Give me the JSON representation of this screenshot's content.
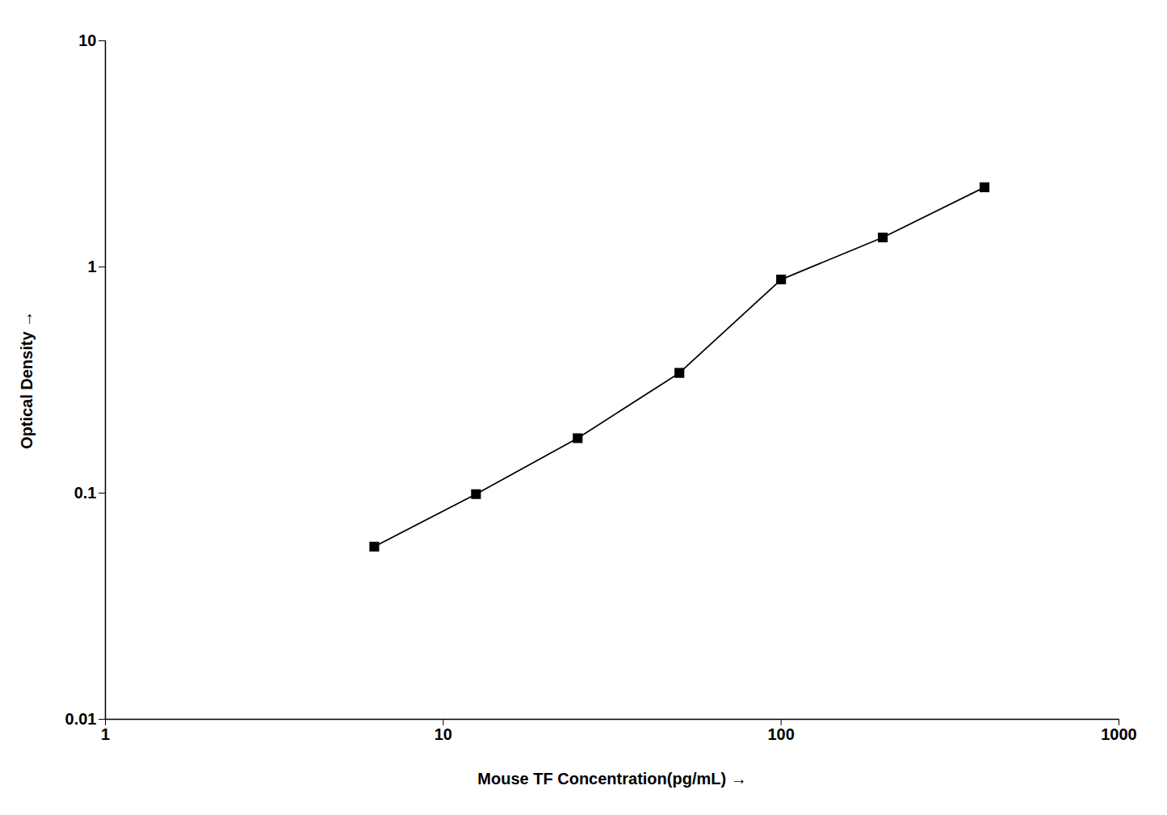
{
  "chart_data": {
    "type": "line",
    "x": [
      6.25,
      12.5,
      25,
      50,
      100,
      200,
      400
    ],
    "values": [
      0.058,
      0.099,
      0.175,
      0.34,
      0.88,
      1.35,
      2.25
    ],
    "xlabel": "Mouse TF Concentration(pg/mL)",
    "ylabel": "Optical Density",
    "xlim": [
      1,
      1000
    ],
    "ylim": [
      0.01,
      10
    ],
    "xticks": [
      1,
      10,
      100,
      1000
    ],
    "yticks": [
      0.01,
      0.1,
      1,
      10
    ],
    "log": true,
    "grid": false,
    "color": "#000000",
    "marker": "square"
  }
}
